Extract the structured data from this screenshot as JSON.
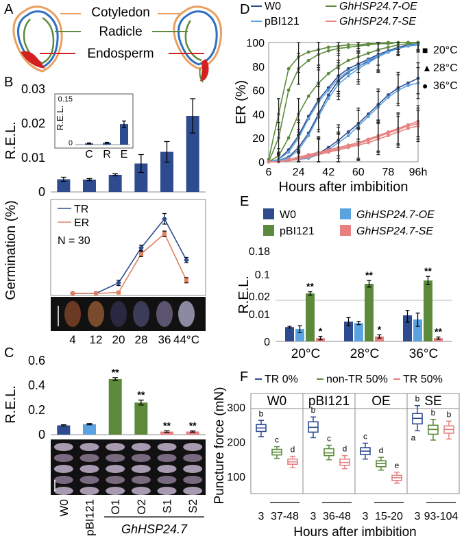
{
  "colors": {
    "w0": "#2E4B8F",
    "pbi": "#5BA3E0",
    "oe": "#5C8A3A",
    "se": "#E88080",
    "tr": "#2E4B8F",
    "er": "#E08060",
    "orange": "#E8A060",
    "red": "#D42020",
    "green": "#5C8A3A",
    "blue": "#3070C0",
    "gray": "#888888",
    "dark": "#111111"
  },
  "panel_labels": {
    "A": "A",
    "B": "B",
    "C": "C",
    "D": "D",
    "E": "E",
    "F": "F"
  },
  "panel_a": {
    "cotyledon": "Cotyledon",
    "radicle": "Radicle",
    "endosperm": "Endosperm"
  },
  "chart_data": [
    {
      "id": "B_bar",
      "type": "bar",
      "title": "",
      "ylabel": "R.E.L.",
      "ylim": [
        0,
        0.03
      ],
      "yticks": [
        {
          "v": 0,
          "label": "0"
        },
        {
          "v": 0.01,
          "label": "0.01"
        },
        {
          "v": 0.02,
          "label": "0.02"
        },
        {
          "v": 0.03,
          "label": "0.03"
        }
      ],
      "categories": [
        "4",
        "12",
        "20",
        "28",
        "36",
        "44"
      ],
      "values": [
        0.0037,
        0.0036,
        0.005,
        0.0083,
        0.0117,
        0.0222
      ],
      "errors": [
        0.0006,
        0.0003,
        0.0003,
        0.0026,
        0.003,
        0.005
      ]
    },
    {
      "id": "B_inset",
      "type": "bar",
      "ylabel": "R.E.L.",
      "ylim": [
        0,
        0.15
      ],
      "yticks": [
        {
          "v": 0,
          "label": "0"
        },
        {
          "v": 0.15,
          "label": "0.15"
        }
      ],
      "categories": [
        "C",
        "R",
        "E"
      ],
      "values": [
        0.004,
        0.006,
        0.065
      ],
      "errors": [
        0.0015,
        0.0015,
        0.01
      ]
    },
    {
      "id": "B_line",
      "type": "line",
      "ylabel": "Germination (%)",
      "ylim": [
        0,
        100
      ],
      "x": [
        "4",
        "12",
        "20",
        "28",
        "36",
        "44"
      ],
      "series": [
        {
          "name": "TR",
          "values": [
            0,
            0,
            12,
            52,
            85,
            38
          ],
          "errors": [
            0,
            0,
            3,
            3,
            6,
            3
          ]
        },
        {
          "name": "ER",
          "values": [
            0,
            0,
            1,
            45,
            68,
            15
          ],
          "errors": [
            0,
            0,
            1,
            3,
            3,
            3
          ]
        }
      ],
      "annotation": "N = 30",
      "xlabels": [
        "4",
        "12",
        "20",
        "28",
        "36",
        "44°C"
      ]
    },
    {
      "id": "C_bar",
      "type": "bar",
      "ylabel": "R.E.L.",
      "ylim": [
        0,
        0.6
      ],
      "yticks": [
        {
          "v": 0,
          "label": "0"
        },
        {
          "v": 0.2,
          "label": "0.2"
        },
        {
          "v": 0.4,
          "label": "0.4"
        },
        {
          "v": 0.6,
          "label": "0.6"
        }
      ],
      "categories": [
        "W0",
        "pBI121",
        "O1",
        "O2",
        "S1",
        "S2"
      ],
      "values": [
        0.075,
        0.085,
        0.45,
        0.26,
        0.025,
        0.025
      ],
      "errors": [
        0.005,
        0.005,
        0.012,
        0.02,
        0.006,
        0.005
      ],
      "groups": [
        "w0",
        "pbi",
        "oe",
        "oe",
        "se",
        "se"
      ],
      "stars": [
        "",
        "",
        "**",
        "**",
        "**",
        "**"
      ],
      "group_label": "GhHSP24.7"
    },
    {
      "id": "D_line",
      "type": "line",
      "ylabel": "ER (%)",
      "xlabel": "Hours after imbibition",
      "ylim": [
        0,
        100
      ],
      "xlim": [
        6,
        96
      ],
      "yticks": [
        "0",
        "20",
        "40",
        "60",
        "80",
        "100"
      ],
      "xticks": [
        {
          "v": 6,
          "label": "6"
        },
        {
          "v": 24,
          "label": "24"
        },
        {
          "v": 42,
          "label": "42"
        },
        {
          "v": 60,
          "label": "60"
        },
        {
          "v": 78,
          "label": "78"
        },
        {
          "v": 96,
          "label": "96h"
        }
      ],
      "legend": [
        {
          "name": "W0",
          "color": "w0"
        },
        {
          "name": "GhHSP24.7-OE",
          "color": "oe"
        },
        {
          "name": "pBI121",
          "color": "pbi"
        },
        {
          "name": "GhHSP24.7-SE",
          "color": "se"
        }
      ],
      "temp_legend": [
        {
          "symbol": "■",
          "label": "20°C"
        },
        {
          "symbol": "▲",
          "label": "28°C"
        },
        {
          "symbol": "●",
          "label": "36°C"
        }
      ],
      "x": [
        6,
        12,
        18,
        24,
        30,
        36,
        42,
        48,
        54,
        60,
        66,
        72,
        78,
        84,
        90,
        96
      ],
      "series": [
        {
          "name": "W0 36°C",
          "color": "w0",
          "values": [
            0,
            2,
            10,
            22,
            38,
            52,
            62,
            72,
            78,
            82,
            86,
            90,
            93,
            96,
            98,
            99
          ]
        },
        {
          "name": "W0 28°C",
          "color": "w0",
          "values": [
            0,
            1,
            4,
            12,
            24,
            40,
            56,
            68,
            75,
            80,
            84,
            88,
            92,
            95,
            97,
            98
          ]
        },
        {
          "name": "W0 20°C",
          "color": "w0",
          "values": [
            0,
            0,
            1,
            2,
            4,
            7,
            12,
            18,
            25,
            32,
            40,
            48,
            56,
            62,
            66,
            70
          ]
        },
        {
          "name": "pBI121 36°C",
          "color": "pbi",
          "values": [
            0,
            2,
            8,
            20,
            36,
            50,
            60,
            70,
            76,
            80,
            85,
            89,
            92,
            95,
            97,
            99
          ]
        },
        {
          "name": "pBI121 28°C",
          "color": "pbi",
          "values": [
            0,
            1,
            3,
            10,
            22,
            38,
            53,
            65,
            72,
            78,
            83,
            88,
            92,
            95,
            97,
            98
          ]
        },
        {
          "name": "pBI121 20°C",
          "color": "pbi",
          "values": [
            0,
            0,
            1,
            2,
            3,
            6,
            10,
            16,
            22,
            30,
            38,
            46,
            54,
            60,
            64,
            66
          ]
        },
        {
          "name": "OE 36°C",
          "color": "oe",
          "values": [
            2,
            40,
            78,
            88,
            92,
            94,
            96,
            97,
            98,
            98,
            99,
            99,
            100,
            100,
            100,
            100
          ]
        },
        {
          "name": "OE 28°C",
          "color": "oe",
          "values": [
            0,
            20,
            60,
            78,
            85,
            90,
            93,
            95,
            96,
            97,
            98,
            99,
            99,
            100,
            100,
            100
          ]
        },
        {
          "name": "OE 20°C",
          "color": "oe",
          "values": [
            0,
            5,
            20,
            40,
            55,
            66,
            74,
            80,
            85,
            88,
            91,
            94,
            96,
            98,
            99,
            100
          ]
        },
        {
          "name": "SE 36°C",
          "color": "se",
          "values": [
            0,
            0,
            2,
            4,
            6,
            8,
            10,
            12,
            14,
            16,
            19,
            22,
            25,
            28,
            31,
            34
          ]
        },
        {
          "name": "SE 28°C",
          "color": "se",
          "values": [
            0,
            0,
            1,
            3,
            5,
            7,
            9,
            11,
            13,
            15,
            18,
            21,
            24,
            27,
            30,
            32
          ]
        },
        {
          "name": "SE 20°C",
          "color": "se",
          "values": [
            0,
            0,
            1,
            2,
            4,
            6,
            8,
            10,
            12,
            14,
            16,
            19,
            22,
            25,
            28,
            30
          ]
        }
      ]
    },
    {
      "id": "E_bar",
      "type": "bar",
      "ylabel": "R.E.L.",
      "broken_axis": true,
      "yticks_top": [
        "0.18",
        "0.1",
        "0.02"
      ],
      "yticks_bottom": [
        "0.01",
        "0"
      ],
      "legend": [
        {
          "name": "W0",
          "color": "w0"
        },
        {
          "name": "GhHSP24.7-OE",
          "color": "oe"
        },
        {
          "name": "pBI121",
          "color": "pbi"
        },
        {
          "name": "GhHSP24.7-SE",
          "color": "se"
        }
      ],
      "categories": [
        "20°C",
        "28°C",
        "36°C"
      ],
      "series": [
        {
          "name": "W0",
          "values": [
            0.0052,
            0.0072,
            0.0095
          ],
          "errors": [
            0.0003,
            0.0015,
            0.0025
          ]
        },
        {
          "name": "pBI121",
          "values": [
            0.0045,
            0.0067,
            0.008
          ],
          "errors": [
            0.0012,
            0.0006,
            0.0025
          ]
        },
        {
          "name": "GhHSP24.7-OE",
          "values": [
            0.03,
            0.065,
            0.077
          ],
          "errors": [
            0.006,
            0.012,
            0.015
          ]
        },
        {
          "name": "GhHSP24.7-SE",
          "values": [
            0.0012,
            0.0018,
            0.0012
          ],
          "errors": [
            0.0006,
            0.0006,
            0.0004
          ]
        }
      ],
      "stars": [
        [
          "",
          "",
          "**",
          "*"
        ],
        [
          "",
          "",
          "**",
          "*"
        ],
        [
          "",
          "",
          "**",
          "**"
        ]
      ]
    },
    {
      "id": "F_box",
      "type": "box",
      "ylabel": "Puncture force (mN)",
      "xlabel": "Hours after imbibition",
      "ylim": [
        50,
        340
      ],
      "yticks": [
        "100",
        "200",
        "300"
      ],
      "legend": [
        {
          "name": "TR 0%",
          "color": "w0"
        },
        {
          "name": "non-TR 50%",
          "color": "oe"
        },
        {
          "name": "TR 50%",
          "color": "se"
        }
      ],
      "groups": [
        {
          "name": "W0",
          "xlabels": [
            "3",
            "37-48"
          ],
          "boxes": [
            {
              "c": "w0",
              "min": 215,
              "q1": 230,
              "med": 240,
              "q3": 250,
              "max": 262,
              "letter": "b"
            },
            {
              "c": "oe",
              "min": 152,
              "q1": 162,
              "med": 170,
              "q3": 178,
              "max": 186,
              "letter": "c"
            },
            {
              "c": "se",
              "min": 125,
              "q1": 135,
              "med": 142,
              "q3": 150,
              "max": 158,
              "letter": "d"
            }
          ]
        },
        {
          "name": "pBI121",
          "xlabels": [
            "3",
            "36-48"
          ],
          "boxes": [
            {
              "c": "w0",
              "min": 212,
              "q1": 228,
              "med": 242,
              "q3": 258,
              "max": 272,
              "letter": "b"
            },
            {
              "c": "oe",
              "min": 148,
              "q1": 160,
              "med": 168,
              "q3": 180,
              "max": 190,
              "letter": "c"
            },
            {
              "c": "se",
              "min": 122,
              "q1": 132,
              "med": 140,
              "q3": 150,
              "max": 160,
              "letter": "d"
            }
          ]
        },
        {
          "name": "OE",
          "xlabels": [
            "3",
            "15-20"
          ],
          "boxes": [
            {
              "c": "w0",
              "min": 150,
              "q1": 163,
              "med": 173,
              "q3": 183,
              "max": 196,
              "letter": "c"
            },
            {
              "c": "oe",
              "min": 118,
              "q1": 128,
              "med": 137,
              "q3": 145,
              "max": 155,
              "letter": "d"
            },
            {
              "c": "se",
              "min": 80,
              "q1": 88,
              "med": 96,
              "q3": 103,
              "max": 112,
              "letter": "e"
            }
          ]
        },
        {
          "name": "SE",
          "xlabels": [
            "3",
            "93-104"
          ],
          "boxes": [
            {
              "c": "w0",
              "min": 232,
              "q1": 252,
              "med": 268,
              "q3": 282,
              "max": 305,
              "letter": "b",
              "letter2": "a"
            },
            {
              "c": "oe",
              "min": 205,
              "q1": 222,
              "med": 236,
              "q3": 248,
              "max": 265,
              "letter": "b"
            },
            {
              "c": "se",
              "min": 208,
              "q1": 225,
              "med": 236,
              "q3": 246,
              "max": 260,
              "letter": "b"
            }
          ]
        }
      ]
    }
  ]
}
